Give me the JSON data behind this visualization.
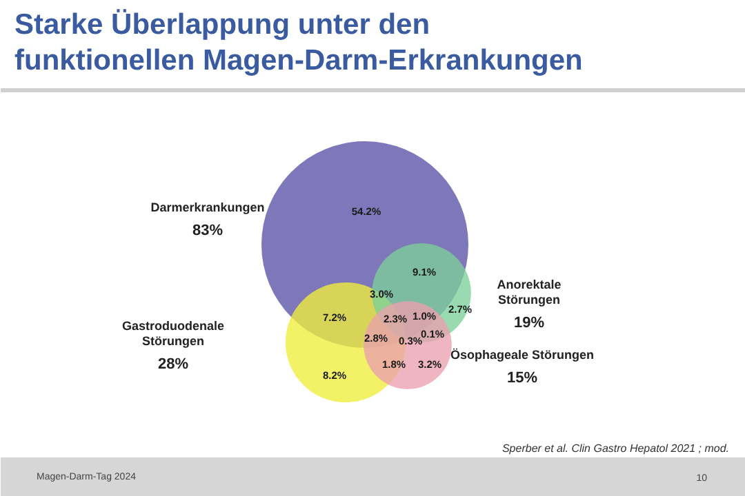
{
  "chart_data": {
    "type": "other",
    "title": "Starke Überlappung unter den\nfunktionellen Magen-Darm-Erkrankungen",
    "categories": [
      "Darmerkrankungen",
      "Gastroduodenale\nStörungen",
      "Anorektale\nStörungen",
      "Ösophageale Störungen"
    ],
    "values": [
      83,
      28,
      19,
      15
    ],
    "value_labels": [
      "83%",
      "28%",
      "19%",
      "15%"
    ],
    "colors": [
      "#5a52a6",
      "#f0ee3c",
      "#7ccf9a",
      "#eba0ae"
    ],
    "annotations": [
      "54.2%",
      "9.1%",
      "3.0%",
      "2.7%",
      "7.2%",
      "2.3%",
      "1.0%",
      "2.8%",
      "0.3%",
      "0.1%",
      "8.2%",
      "1.8%",
      "3.2%",
      "Sperber et al. Clin Gastro Hepatol 2021 ; mod.",
      "Magen-Darm-Tag 2024",
      "10"
    ]
  }
}
